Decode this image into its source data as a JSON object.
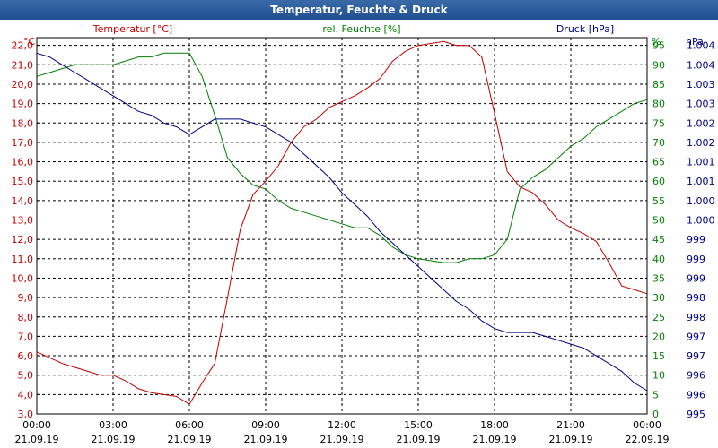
{
  "chart_data": {
    "type": "line",
    "title": "Temperatur, Feuchte & Druck",
    "x_hours": [
      0,
      0.5,
      1,
      1.5,
      2,
      2.5,
      3,
      3.5,
      4,
      4.5,
      5,
      5.5,
      6,
      6.5,
      7,
      7.5,
      8,
      8.5,
      9,
      9.5,
      10,
      10.5,
      11,
      11.5,
      12,
      12.5,
      13,
      13.5,
      14,
      14.5,
      15,
      15.5,
      16,
      16.5,
      17,
      17.5,
      18,
      18.5,
      19,
      19.5,
      20,
      20.5,
      21,
      21.5,
      22,
      22.5,
      23,
      23.5,
      24
    ],
    "xlim": [
      0,
      24
    ],
    "x_ticks": [
      {
        "time": "00:00",
        "date": "21.09.19"
      },
      {
        "time": "03:00",
        "date": "21.09.19"
      },
      {
        "time": "06:00",
        "date": "21.09.19"
      },
      {
        "time": "09:00",
        "date": "21.09.19"
      },
      {
        "time": "12:00",
        "date": "21.09.19"
      },
      {
        "time": "15:00",
        "date": "21.09.19"
      },
      {
        "time": "18:00",
        "date": "21.09.19"
      },
      {
        "time": "21:00",
        "date": "21.09.19"
      },
      {
        "time": "00:00",
        "date": "22.09.19"
      }
    ],
    "axes": {
      "temperature": {
        "unit": "°C",
        "label": "Temperatur [°C]",
        "ylim": [
          3,
          22.4
        ],
        "ticks": [
          "3,0",
          "4,0",
          "5,0",
          "6,0",
          "7,0",
          "8,0",
          "9,0",
          "10,0",
          "11,0",
          "12,0",
          "13,0",
          "14,0",
          "15,0",
          "16,0",
          "17,0",
          "18,0",
          "19,0",
          "20,0",
          "21,0",
          "22,0"
        ],
        "color": "#c00000"
      },
      "humidity": {
        "unit": "%",
        "label": "rel. Feuchte [%]",
        "ylim": [
          0,
          97
        ],
        "ticks": [
          "0",
          "5",
          "10",
          "15",
          "20",
          "25",
          "30",
          "35",
          "40",
          "45",
          "50",
          "55",
          "60",
          "65",
          "70",
          "75",
          "80",
          "85",
          "90",
          "95"
        ],
        "color": "#008000"
      },
      "pressure": {
        "unit": "hPa",
        "label": "Druck [hPa]",
        "ylim": [
          994.5,
          1004.2
        ],
        "ticks": [
          "995",
          "996",
          "996",
          "997",
          "997",
          "998",
          "998",
          "999",
          "999",
          "999",
          "1.000",
          "1.000",
          "1.001",
          "1.001",
          "1.002",
          "1.002",
          "1.003",
          "1.003",
          "1.004",
          "1.004"
        ],
        "color": "#000080"
      }
    },
    "series": [
      {
        "name": "Temperatur",
        "unit": "°C",
        "color": "#c00000",
        "values": [
          6.2,
          5.9,
          5.6,
          5.4,
          5.2,
          5.0,
          5.0,
          4.7,
          4.3,
          4.1,
          4.0,
          3.9,
          3.5,
          4.6,
          5.6,
          9.0,
          12.5,
          14.3,
          15.0,
          15.8,
          17.0,
          17.8,
          18.2,
          18.8,
          19.1,
          19.4,
          19.8,
          20.3,
          21.2,
          21.7,
          22.0,
          22.1,
          22.2,
          22.0,
          22.0,
          21.4,
          18.5,
          15.5,
          14.7,
          14.4,
          13.8,
          13.0,
          12.6,
          12.3,
          11.9,
          10.8,
          9.6,
          9.4,
          9.2
        ]
      },
      {
        "name": "rel. Feuchte",
        "unit": "%",
        "color": "#008000",
        "values": [
          87,
          88,
          89,
          90,
          90,
          90,
          90,
          91,
          92,
          92,
          93,
          93,
          93,
          87,
          77,
          66,
          62,
          59,
          58,
          55,
          53,
          52,
          51,
          50,
          49,
          48,
          48,
          46,
          43,
          41,
          40,
          39.5,
          39,
          39,
          40,
          40,
          41,
          45,
          58,
          61,
          63,
          66,
          69,
          71,
          74,
          76,
          78,
          80,
          81
        ]
      },
      {
        "name": "Druck",
        "unit": "hPa",
        "color": "#000080",
        "values": [
          1003.8,
          1003.7,
          1003.5,
          1003.3,
          1003.1,
          1002.9,
          1002.7,
          1002.5,
          1002.3,
          1002.2,
          1002.0,
          1001.9,
          1001.7,
          1001.9,
          1002.1,
          1002.1,
          1002.1,
          1002.0,
          1001.9,
          1001.7,
          1001.5,
          1001.2,
          1000.9,
          1000.6,
          1000.2,
          999.9,
          999.6,
          999.2,
          998.9,
          998.6,
          998.3,
          998.0,
          997.7,
          997.4,
          997.2,
          996.9,
          996.7,
          996.6,
          996.6,
          996.6,
          996.5,
          996.4,
          996.3,
          996.2,
          996.0,
          995.8,
          995.6,
          995.3,
          995.1
        ]
      }
    ]
  }
}
